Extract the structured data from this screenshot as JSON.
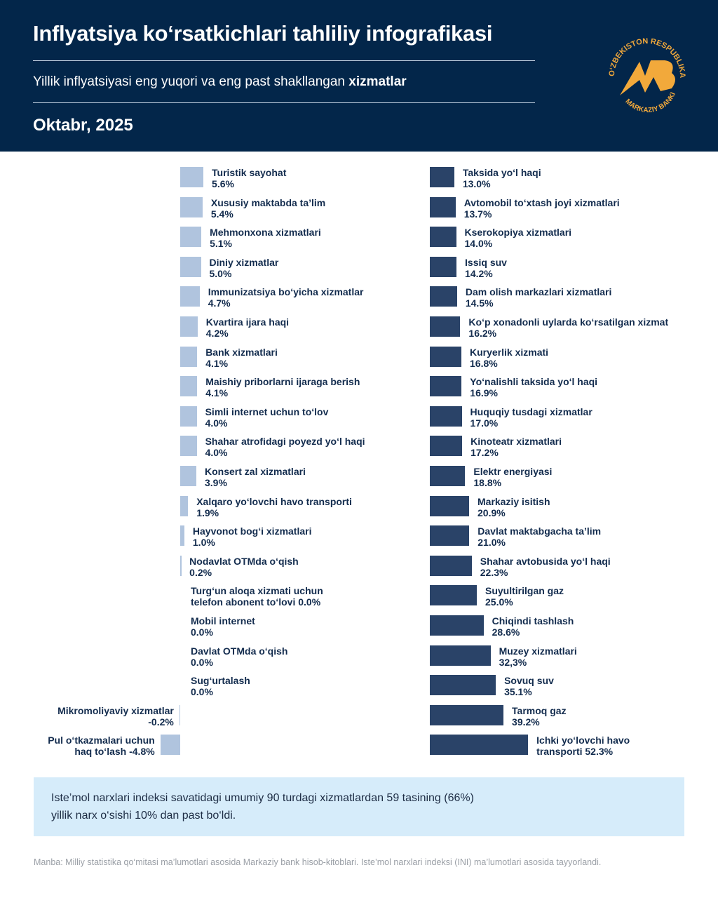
{
  "header": {
    "title": "Inflyatsiya ko‘rsatkichlari tahliliy infografikasi",
    "subtitle_regular": "Yillik inflyatsiyasi eng yuqori va eng past shakllangan ",
    "subtitle_bold": "xizmatlar",
    "date": "Oktabr, 2025",
    "logo_text": "O‘ZBEKISTON RESPUBLIKASI MARKAZIY BANKI",
    "logo_letters": "MB"
  },
  "chart_data": [
    {
      "type": "bar",
      "orientation": "horizontal",
      "unit": "%",
      "color": "#b0c4de",
      "series": [
        {
          "values": [
            5.6,
            5.4,
            5.1,
            5.0,
            4.7,
            4.2,
            4.1,
            4.1,
            4.0,
            4.0,
            3.9,
            1.9,
            1.0,
            0.2,
            0.0,
            0.0,
            0.0,
            0.0,
            -0.2,
            -4.8
          ]
        }
      ],
      "categories": [
        "Turistik sayohat",
        "Xususiy maktabda ta’lim",
        "Mehmonxona xizmatlari",
        "Diniy xizmatlar",
        "Immunizatsiya bo‘yicha xizmatlar",
        "Kvartira ijara haqi",
        "Bank xizmatlari",
        "Maishiy priborlarni ijaraga berish",
        "Simli internet uchun to‘lov",
        "Shahar atrofidagi poyezd yo‘l haqi",
        "Konsert zal xizmatlari",
        "Xalqaro yo‘lovchi havo transporti",
        "Hayvonot bog‘i xizmatlari",
        "Nodavlat OTMda o‘qish",
        "Turg‘un aloqa xizmati uchun\ntelefon abonent to‘lovi",
        "Mobil internet",
        "Davlat OTMda o‘qish",
        "Sug‘urtalash",
        "Mikromoliyaviy xizmatlar",
        "Pul o‘tkazmalari uchun\nhaq to‘lash"
      ],
      "value_labels": [
        "5.6%",
        "5.4%",
        "5.1%",
        "5.0%",
        "4.7%",
        "4.2%",
        "4.1%",
        "4.1%",
        "4.0%",
        "4.0%",
        "3.9%",
        "1.9%",
        "1.0%",
        "0.2%",
        "0.0%",
        "0.0%",
        "0.0%",
        "0.0%",
        "-0.2%",
        "-4.8%"
      ]
    },
    {
      "type": "bar",
      "orientation": "horizontal",
      "unit": "%",
      "color": "#2a4368",
      "series": [
        {
          "values": [
            13.0,
            13.7,
            14.0,
            14.2,
            14.5,
            16.2,
            16.8,
            16.9,
            17.0,
            17.2,
            18.8,
            20.9,
            21.0,
            22.3,
            25.0,
            28.6,
            32.3,
            35.1,
            39.2,
            52.3
          ]
        }
      ],
      "categories": [
        "Taksida yo‘l haqi",
        "Avtomobil to‘xtash joyi xizmatlari",
        "Kserokopiya xizmatlari",
        "Issiq suv",
        "Dam olish markazlari xizmatlari",
        "Ko‘p xonadonli uylarda ko‘rsatilgan xizmat",
        "Kuryerlik xizmati",
        "Yo‘nalishli taksida yo‘l haqi",
        "Huquqiy tusdagi xizmatlar",
        "Kinoteatr xizmatlari",
        "Elektr energiyasi",
        "Markaziy isitish",
        "Davlat maktabgacha ta’lim",
        "Shahar avtobusida yo‘l haqi",
        "Suyultirilgan gaz",
        "Chiqindi tashlash",
        "Muzey xizmatlari",
        "Sovuq suv",
        "Tarmoq gaz",
        "Ichki yo‘lovchi havo\ntransporti"
      ],
      "value_labels": [
        "13.0%",
        "13.7%",
        "14.0%",
        "14.2%",
        "14.5%",
        "16.2%",
        "16.8%",
        "16.9%",
        "17.0%",
        "17.2%",
        "18.8%",
        "20.9%",
        "21.0%",
        "22.3%",
        "25.0%",
        "28.6%",
        "32,3%",
        "35.1%",
        "39.2%",
        "52.3%"
      ]
    }
  ],
  "note": {
    "line1": "Iste’mol narxlari indeksi savatidagi umumiy 90 turdagi xizmatlardan 59 tasining (66%)",
    "line2": "yillik narx o‘sishi 10% dan past bo‘ldi."
  },
  "source": "Manba: Milliy statistika qo‘mitasi ma’lumotlari asosida Markaziy bank hisob-kitoblari. Iste’mol narxlari indeksi (INI) ma’lumotlari asosida tayyorlandi."
}
